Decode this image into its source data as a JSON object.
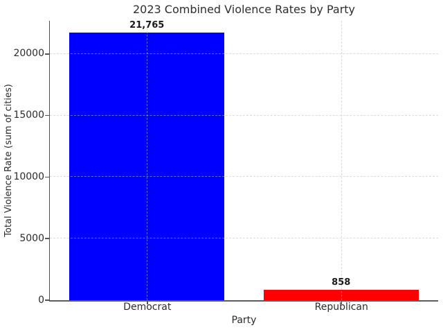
{
  "chart_data": {
    "type": "bar",
    "title": "2023 Combined Violence Rates by Party",
    "xlabel": "Party",
    "ylabel": "Total Violence Rate (sum of cities)",
    "categories": [
      "Democrat",
      "Republican"
    ],
    "values": [
      21765,
      858
    ],
    "value_labels": [
      "21,765",
      "858"
    ],
    "bar_colors": [
      "#0000ff",
      "#ff0000"
    ],
    "yticks": [
      0,
      5000,
      10000,
      15000,
      20000
    ],
    "ylim": [
      0,
      22700
    ],
    "bar_width_frac": 0.8,
    "grid": true,
    "grid_style": "dashed",
    "legend": "none",
    "style": {
      "grid_color": "#bebebe",
      "spine_color": "#555555",
      "text_color": "#2b2b2b",
      "background": "#ffffff"
    }
  }
}
